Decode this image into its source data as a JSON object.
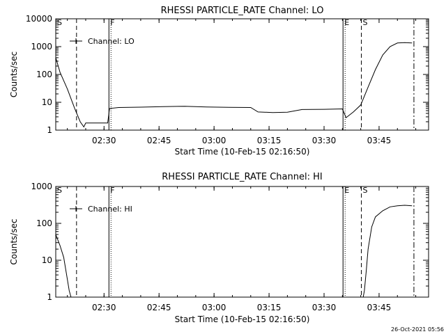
{
  "footer_timestamp": "26-Oct-2021 05:56",
  "chart_data": [
    {
      "type": "line",
      "title": "RHESSI PARTICLE_RATE Channel: LO",
      "xlabel": "Start Time (10-Feb-15 02:16:50)",
      "ylabel": "Counts/sec",
      "y_scale": "log",
      "ylim": [
        1,
        10000
      ],
      "xlim": [
        "02:16:50",
        "03:58:30"
      ],
      "grid": false,
      "legend_position": "top-left",
      "x_ticks": [
        "02:30",
        "02:45",
        "03:00",
        "03:15",
        "03:30",
        "03:45"
      ],
      "y_ticks": [
        "1",
        "10",
        "100",
        "1000",
        "10000"
      ],
      "series": [
        {
          "name": "Channel: LO",
          "x": [
            "02:16:50",
            "02:18:00",
            "02:20:00",
            "02:22:00",
            "02:23:30",
            "02:24:30",
            "02:25:00",
            "02:25:30",
            "02:26:00",
            "02:27:00",
            "02:29:00",
            "02:31:00",
            "02:31:30",
            "02:34:00",
            "02:40:00",
            "02:46:00",
            "02:52:00",
            "02:58:00",
            "03:04:00",
            "03:10:00",
            "03:12:00",
            "03:16:00",
            "03:20:00",
            "03:24:00",
            "03:30:00",
            "03:35:00",
            "03:36:00",
            "03:38:00",
            "03:40:00",
            "03:42:00",
            "03:44:00",
            "03:46:00",
            "03:48:00",
            "03:50:00",
            "03:52:00",
            "03:54:00"
          ],
          "y": [
            400,
            120,
            30,
            6,
            2,
            1.3,
            1.8,
            1.8,
            1.8,
            1.8,
            1.8,
            1.8,
            6,
            6.5,
            6.7,
            7,
            7.2,
            6.8,
            6.6,
            6.5,
            4.5,
            4.3,
            4.4,
            5.5,
            5.6,
            5.8,
            2.8,
            4.5,
            8,
            35,
            150,
            500,
            1000,
            1350,
            1400,
            1350
          ]
        }
      ],
      "markers": [
        {
          "label": "S",
          "x": "02:16:50",
          "style": "dotted"
        },
        {
          "label": "",
          "x": "02:22:30",
          "style": "dashed"
        },
        {
          "label": "F",
          "x": "02:31:20",
          "style": "solid-dotted"
        },
        {
          "label": "E",
          "x": "03:35:10",
          "style": "solid-dotted"
        },
        {
          "label": "S",
          "x": "03:40:10",
          "style": "dashed"
        },
        {
          "label": "",
          "x": "03:54:30",
          "style": "dashdot"
        }
      ]
    },
    {
      "type": "line",
      "title": "RHESSI PARTICLE_RATE Channel: HI",
      "xlabel": "Start Time (10-Feb-15 02:16:50)",
      "ylabel": "Counts/sec",
      "y_scale": "log",
      "ylim": [
        1,
        1000
      ],
      "xlim": [
        "02:16:50",
        "03:58:30"
      ],
      "grid": false,
      "legend_position": "top-left",
      "x_ticks": [
        "02:30",
        "02:45",
        "03:00",
        "03:15",
        "03:30",
        "03:45"
      ],
      "y_ticks": [
        "1",
        "10",
        "100",
        "1000"
      ],
      "series": [
        {
          "name": "Channel: HI",
          "x": [
            "02:16:50",
            "02:18:00",
            "02:19:00",
            "02:20:00",
            "02:20:30",
            "02:21:00",
            "03:40:40",
            "03:41:00",
            "03:41:30",
            "03:42:00",
            "03:43:00",
            "03:44:00",
            "03:46:00",
            "03:48:00",
            "03:50:00",
            "03:52:00",
            "03:54:00"
          ],
          "y": [
            50,
            25,
            12,
            3,
            1.5,
            1,
            1,
            1.5,
            5,
            20,
            80,
            150,
            220,
            280,
            300,
            310,
            300
          ]
        }
      ],
      "markers": [
        {
          "label": "S",
          "x": "02:16:50",
          "style": "dotted"
        },
        {
          "label": "",
          "x": "02:22:30",
          "style": "dashed"
        },
        {
          "label": "F",
          "x": "02:31:20",
          "style": "solid-dotted"
        },
        {
          "label": "E",
          "x": "03:35:10",
          "style": "solid-dotted"
        },
        {
          "label": "S",
          "x": "03:40:10",
          "style": "dashed"
        },
        {
          "label": "",
          "x": "03:54:30",
          "style": "dashdot"
        }
      ]
    }
  ]
}
